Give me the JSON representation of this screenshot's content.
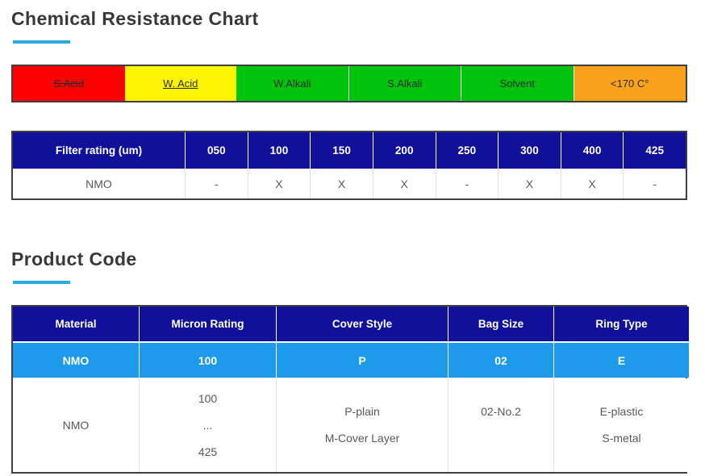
{
  "headings": {
    "chemical": "Chemical Resistance Chart",
    "product": "Product Code"
  },
  "resistance_bar": {
    "segments": [
      {
        "label": "S.Acid",
        "color": "#FF0000",
        "text_style": "line-through"
      },
      {
        "label": "W. Acid",
        "color": "#FCF400",
        "text_style": "underline"
      },
      {
        "label": "W.Alkali",
        "color": "#00C40B",
        "text_style": "none"
      },
      {
        "label": "S.Alkali",
        "color": "#00C40B",
        "text_style": "none"
      },
      {
        "label": "Solvent",
        "color": "#00C40B",
        "text_style": "none"
      },
      {
        "label": "<170 C°",
        "color": "#F9A11B",
        "text_style": "none"
      }
    ]
  },
  "filter_table": {
    "header": [
      "Filter rating (um)",
      "050",
      "100",
      "150",
      "200",
      "250",
      "300",
      "400",
      "425"
    ],
    "rows": [
      [
        "NMO",
        "-",
        "X",
        "X",
        "X",
        "-",
        "X",
        "X",
        "-"
      ]
    ]
  },
  "product_table": {
    "header": [
      "Material",
      "Micron Rating",
      "Cover Style",
      "Bag Size",
      "Ring Type"
    ],
    "code_row": [
      "NMO",
      "100",
      "P",
      "02",
      "E"
    ],
    "detail_row": {
      "material": "NMO",
      "micron_lines": [
        "100",
        "...",
        "425"
      ],
      "cover_lines": [
        "P-plain",
        "M-Cover Layer"
      ],
      "bag_lines": [
        "02-No.2",
        ""
      ],
      "ring_lines": [
        "E-plastic",
        "S-metal"
      ]
    }
  },
  "colors": {
    "accent_underline": "#29ABE2",
    "table_header_navy": "#10109B",
    "code_row_blue": "#1D9BEA",
    "bar_red": "#FF0000",
    "bar_yellow": "#FCF400",
    "bar_green": "#00C40B",
    "bar_orange": "#F9A11B",
    "border_dark": "#3F3F3F"
  }
}
